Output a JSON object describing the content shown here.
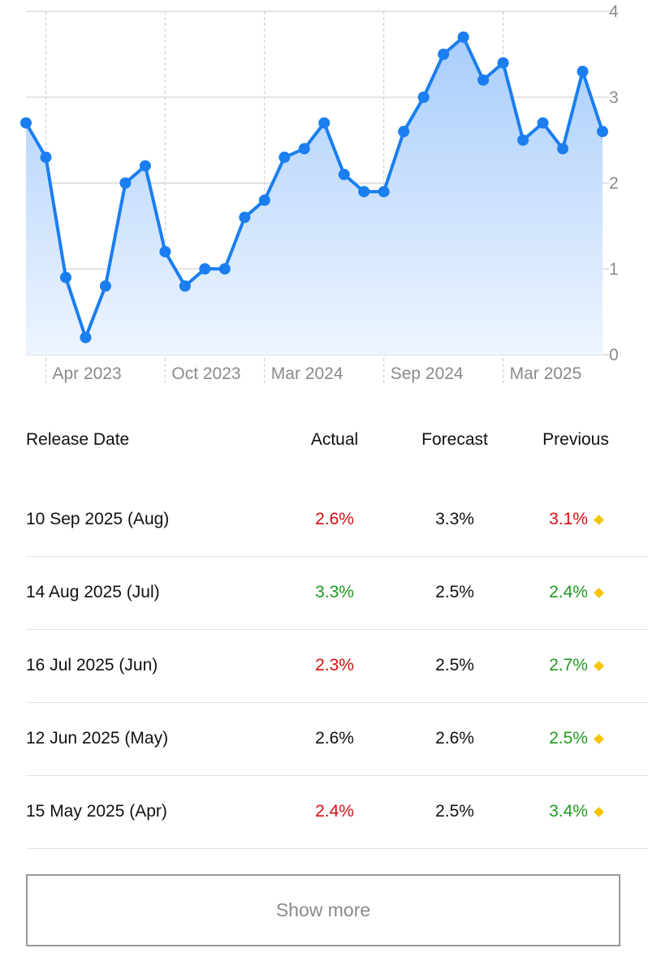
{
  "colors": {
    "line": "#1a7ef0",
    "area_top": "#a9cdfb",
    "area_bottom": "#eef5fe",
    "red": "#d40f0f",
    "green": "#1f9a1f",
    "neutral": "#111111",
    "diamond": "#f7c500"
  },
  "chart_data": {
    "type": "area",
    "x": [
      "2023-03",
      "2023-04",
      "2023-05",
      "2023-06",
      "2023-07",
      "2023-08",
      "2023-09",
      "2023-10",
      "2023-11",
      "2023-12",
      "2024-01",
      "2024-02",
      "2024-03",
      "2024-04",
      "2024-05",
      "2024-06",
      "2024-07",
      "2024-08",
      "2024-09",
      "2024-10",
      "2024-11",
      "2024-12",
      "2025-01",
      "2025-02",
      "2025-03",
      "2025-04",
      "2025-05",
      "2025-06",
      "2025-07",
      "2025-08"
    ],
    "values": [
      2.7,
      2.3,
      0.9,
      0.2,
      0.8,
      2.0,
      2.2,
      1.2,
      0.8,
      1.0,
      1.0,
      1.6,
      1.8,
      2.3,
      2.4,
      2.7,
      2.1,
      1.9,
      1.9,
      2.6,
      3.0,
      3.5,
      3.7,
      3.2,
      3.4,
      2.5,
      2.7,
      2.4,
      3.3,
      2.6
    ],
    "ylim": [
      0,
      4
    ],
    "y_ticks": [
      "0",
      "1",
      "2",
      "3",
      "4"
    ],
    "x_tick_labels": [
      "Apr 2023",
      "Oct 2023",
      "Mar 2024",
      "Sep 2024",
      "Mar 2025"
    ],
    "grid": true,
    "y_axis_side": "right"
  },
  "table": {
    "headers": {
      "date": "Release Date",
      "actual": "Actual",
      "forecast": "Forecast",
      "previous": "Previous"
    },
    "rows": [
      {
        "date": "10 Sep 2025 (Aug)",
        "actual": "2.6%",
        "actual_color": "red",
        "forecast": "3.3%",
        "previous": "3.1%",
        "previous_color": "red"
      },
      {
        "date": "14 Aug 2025 (Jul)",
        "actual": "3.3%",
        "actual_color": "green",
        "forecast": "2.5%",
        "previous": "2.4%",
        "previous_color": "green"
      },
      {
        "date": "16 Jul 2025 (Jun)",
        "actual": "2.3%",
        "actual_color": "red",
        "forecast": "2.5%",
        "previous": "2.7%",
        "previous_color": "green"
      },
      {
        "date": "12 Jun 2025 (May)",
        "actual": "2.6%",
        "actual_color": "neutral",
        "forecast": "2.6%",
        "previous": "2.5%",
        "previous_color": "green"
      },
      {
        "date": "15 May 2025 (Apr)",
        "actual": "2.4%",
        "actual_color": "red",
        "forecast": "2.5%",
        "previous": "3.4%",
        "previous_color": "green"
      }
    ]
  },
  "show_more_label": "Show more"
}
